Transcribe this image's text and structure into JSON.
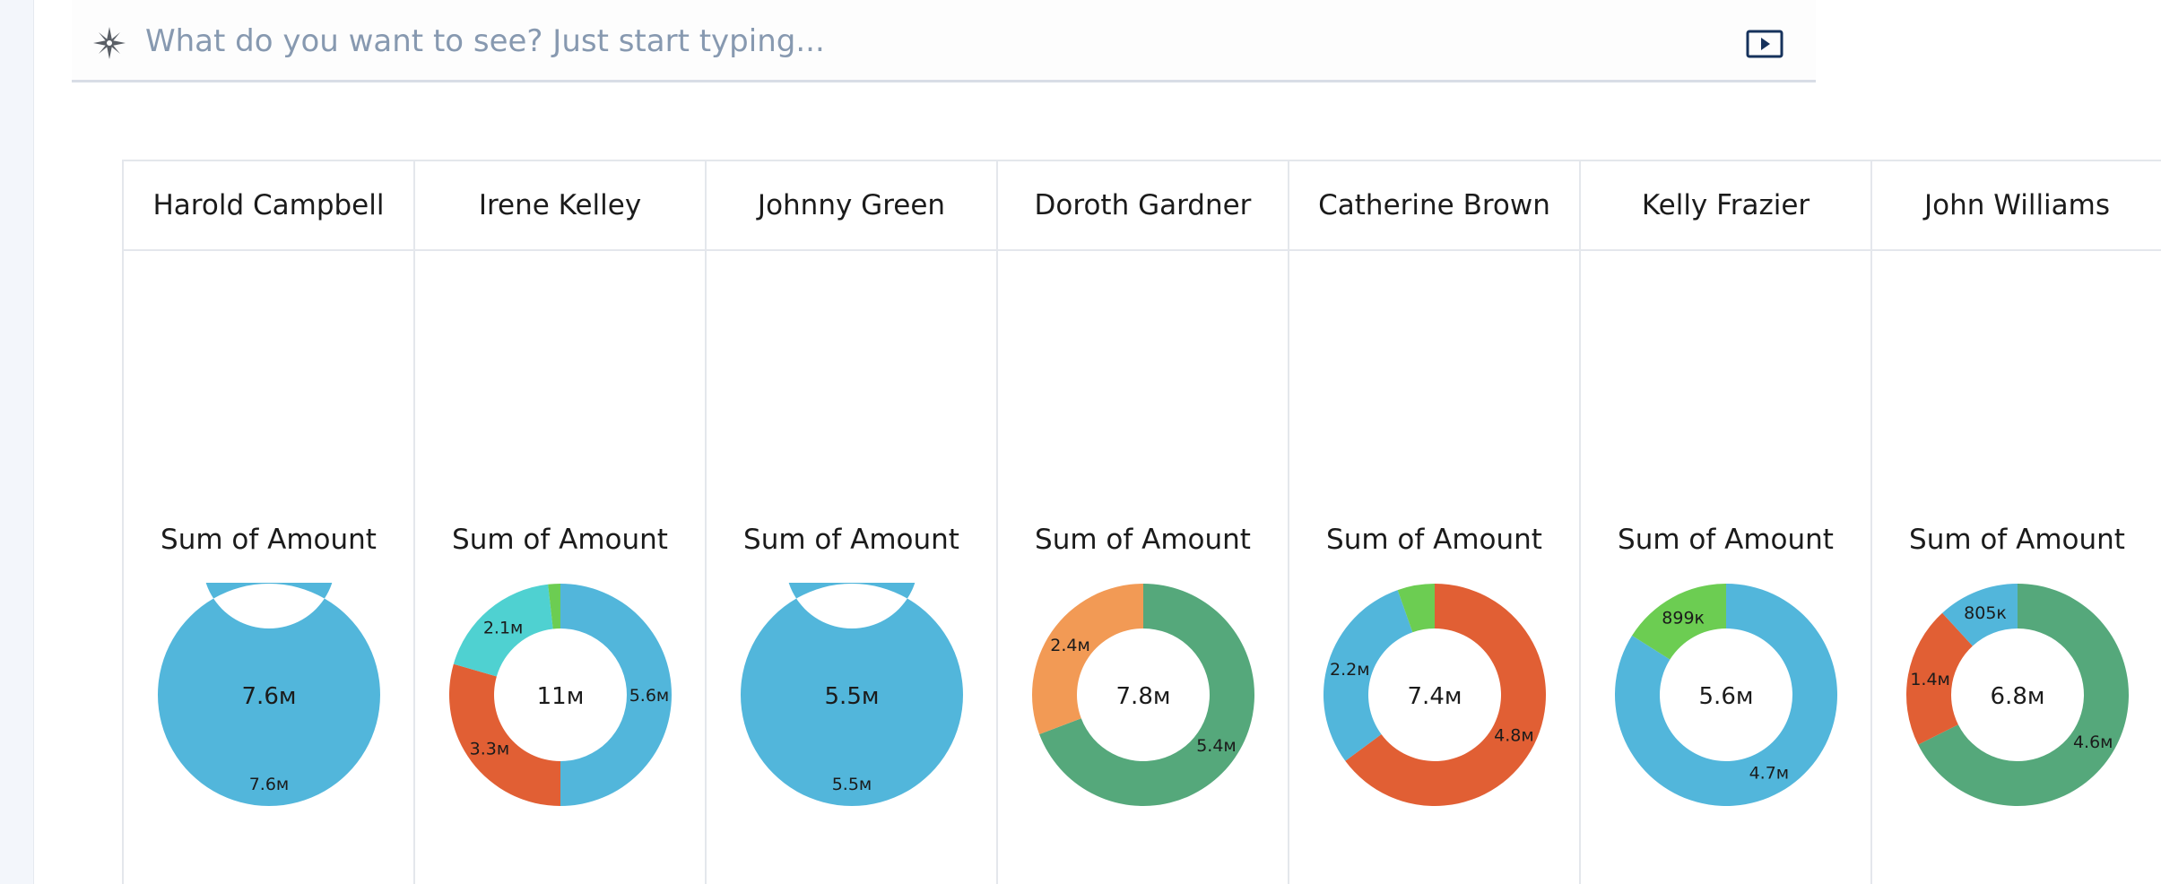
{
  "search": {
    "placeholder": "What do you want to see? Just start typing..."
  },
  "icons": {
    "search_prefix": "compass-icon",
    "present": "play-icon"
  },
  "colors": {
    "blue": "#52b6db",
    "orange_red": "#e15f34",
    "teal": "#4fd1d1",
    "green": "#6ccd52",
    "dark_green": "#55a87b",
    "light_orange": "#f29a55"
  },
  "chart_data": [
    {
      "type": "donut",
      "panel": "Harold Campbell",
      "title": "Sum of Amount",
      "total_label": "7.6м",
      "slices": [
        {
          "value": 7.6,
          "label": "7.6м",
          "color": "#52b6db"
        }
      ]
    },
    {
      "type": "donut",
      "panel": "Irene Kelley",
      "title": "Sum of Amount",
      "total_label": "11м",
      "slices": [
        {
          "value": 5.6,
          "label": "5.6м",
          "color": "#52b6db"
        },
        {
          "value": 3.3,
          "label": "3.3м",
          "color": "#e15f34"
        },
        {
          "value": 2.1,
          "label": "2.1м",
          "color": "#4fd1d1"
        },
        {
          "value": 0.2,
          "label": "",
          "color": "#6ccd52"
        }
      ]
    },
    {
      "type": "donut",
      "panel": "Johnny Green",
      "title": "Sum of Amount",
      "total_label": "5.5м",
      "slices": [
        {
          "value": 5.5,
          "label": "5.5м",
          "color": "#52b6db"
        }
      ]
    },
    {
      "type": "donut",
      "panel": "Doroth Gardner",
      "title": "Sum of Amount",
      "total_label": "7.8м",
      "slices": [
        {
          "value": 5.4,
          "label": "5.4м",
          "color": "#55a87b"
        },
        {
          "value": 2.4,
          "label": "2.4м",
          "color": "#f29a55"
        }
      ]
    },
    {
      "type": "donut",
      "panel": "Catherine Brown",
      "title": "Sum of Amount",
      "total_label": "7.4м",
      "slices": [
        {
          "value": 4.8,
          "label": "4.8м",
          "color": "#e15f34"
        },
        {
          "value": 2.2,
          "label": "2.2м",
          "color": "#52b6db"
        },
        {
          "value": 0.4,
          "label": "",
          "color": "#6ccd52"
        }
      ]
    },
    {
      "type": "donut",
      "panel": "Kelly Frazier",
      "title": "Sum of Amount",
      "total_label": "5.6м",
      "slices": [
        {
          "value": 4.7,
          "label": "4.7м",
          "color": "#52b6db"
        },
        {
          "value": 0.899,
          "label": "899к",
          "color": "#6ccd52"
        }
      ]
    },
    {
      "type": "donut",
      "panel": "John Williams",
      "title": "Sum of Amount",
      "total_label": "6.8м",
      "slices": [
        {
          "value": 4.6,
          "label": "4.6м",
          "color": "#55a87b"
        },
        {
          "value": 1.4,
          "label": "1.4м",
          "color": "#e15f34"
        },
        {
          "value": 0.805,
          "label": "805к",
          "color": "#52b6db"
        }
      ]
    }
  ]
}
